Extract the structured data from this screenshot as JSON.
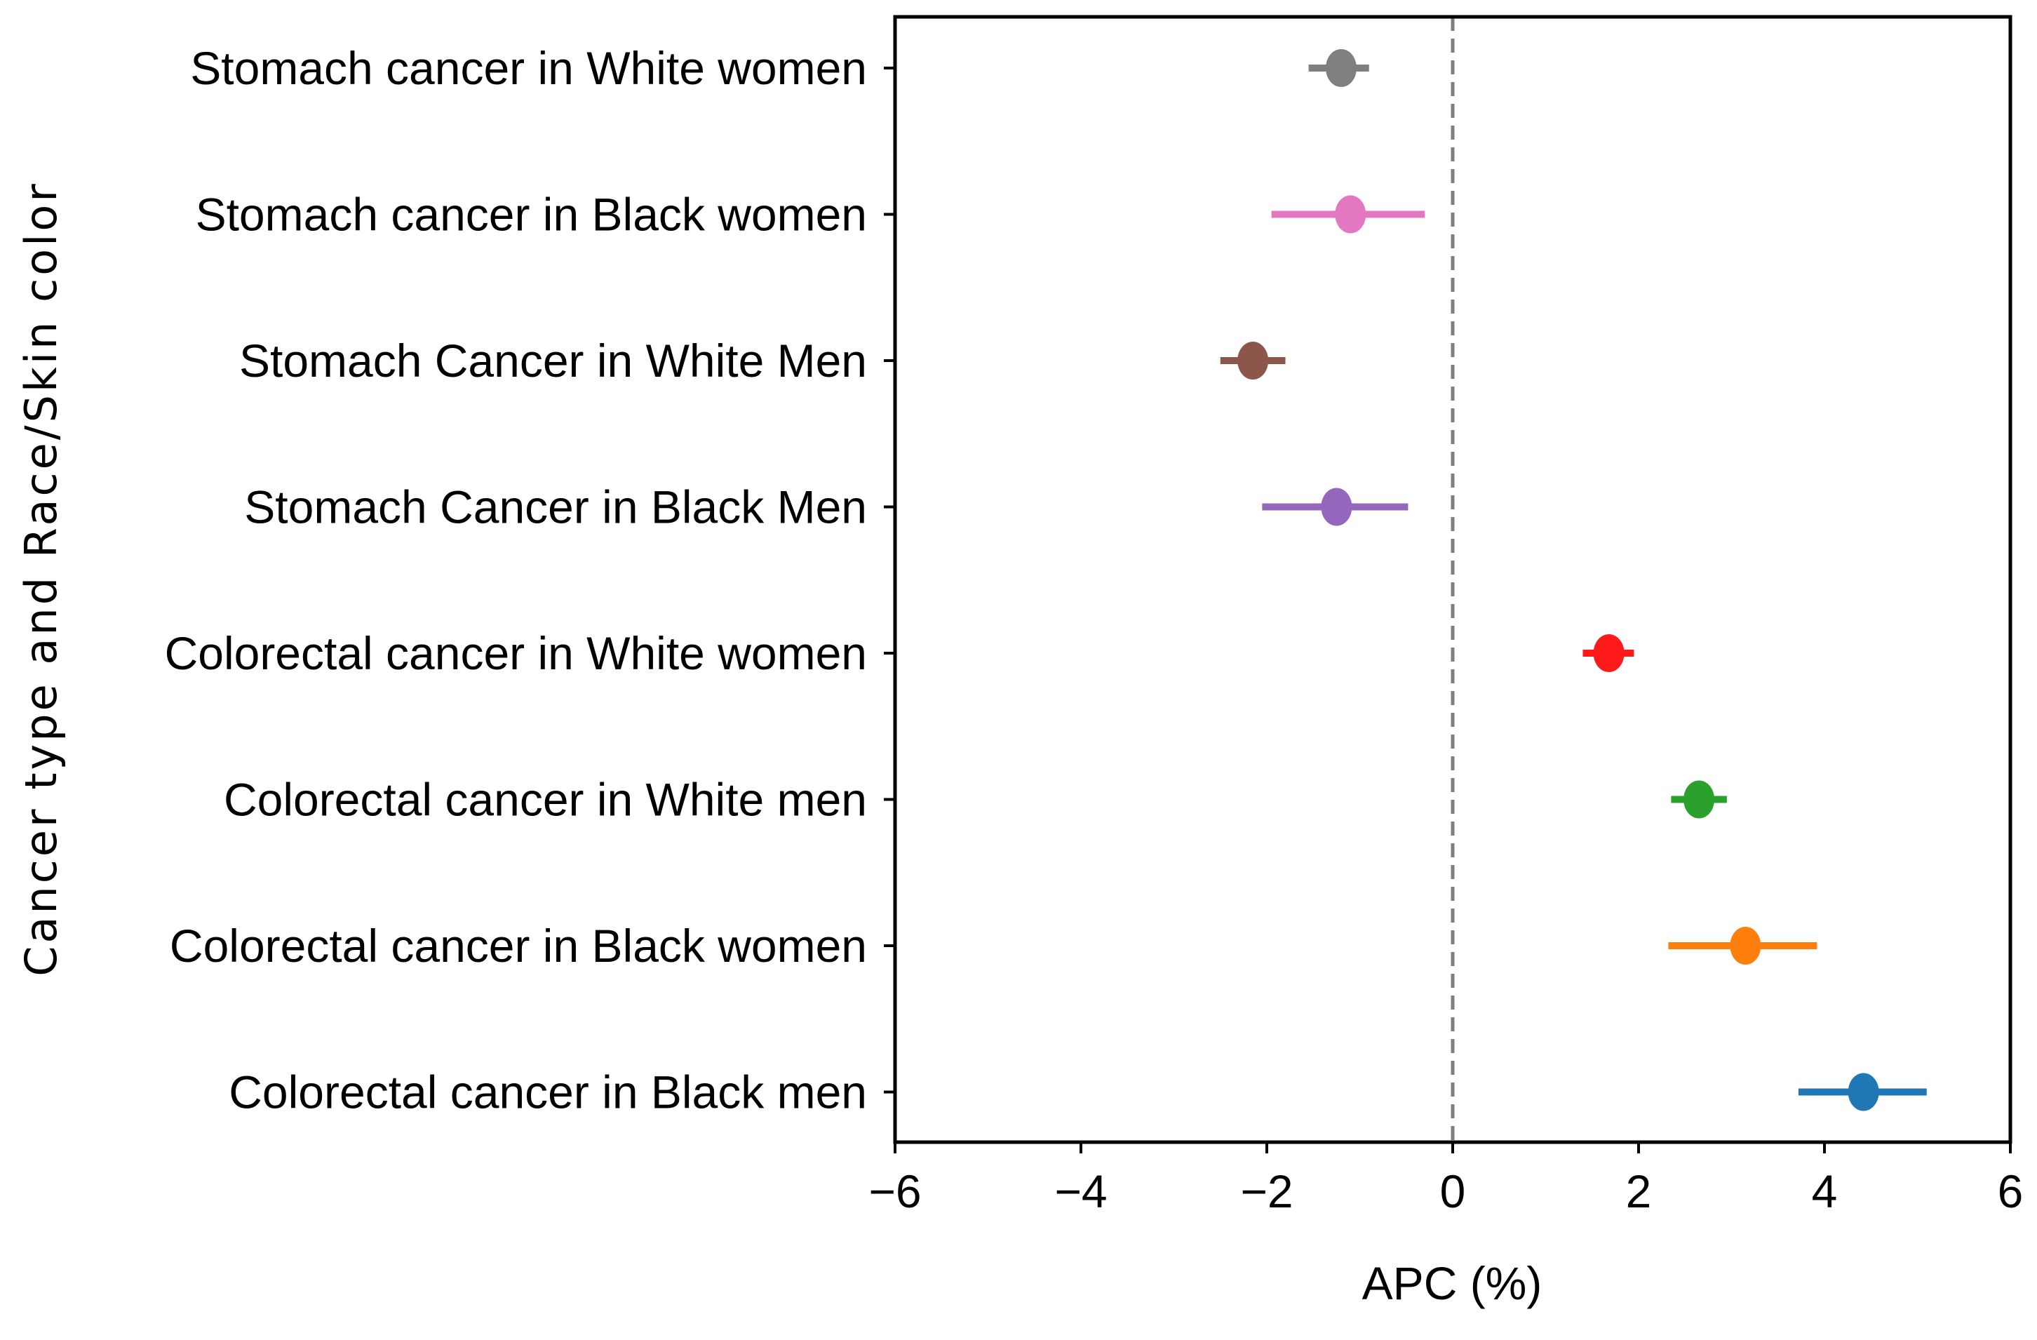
{
  "chart_data": {
    "type": "scatter",
    "subtype": "forest-plot",
    "title": "",
    "xlabel": "APC (%)",
    "ylabel": "Cancer type and Race/Skin color",
    "xlim": [
      -6,
      6
    ],
    "xticks": [
      -6,
      -4,
      -2,
      0,
      2,
      4,
      6
    ],
    "xtick_labels": [
      "−6",
      "−4",
      "−2",
      "0",
      "2",
      "4",
      "6"
    ],
    "reference_line": {
      "x": 0,
      "style": "dashed",
      "color": "#7f7f7f"
    },
    "grid": false,
    "series": [
      {
        "name": "Stomach cancer in White women",
        "apc": -1.2,
        "ci": [
          -1.55,
          -0.9
        ],
        "color": "#7f7f7f"
      },
      {
        "name": "Stomach cancer in Black women",
        "apc": -1.1,
        "ci": [
          -1.95,
          -0.3
        ],
        "color": "#e377c2"
      },
      {
        "name": "Stomach Cancer in White Men",
        "apc": -2.15,
        "ci": [
          -2.5,
          -1.8
        ],
        "color": "#8c564b"
      },
      {
        "name": "Stomach Cancer in Black Men",
        "apc": -1.25,
        "ci": [
          -2.05,
          -0.48
        ],
        "color": "#9467bd"
      },
      {
        "name": "Colorectal cancer in White women",
        "apc": 1.68,
        "ci": [
          1.4,
          1.95
        ],
        "color": "#ff1a1a"
      },
      {
        "name": "Colorectal cancer in White men",
        "apc": 2.65,
        "ci": [
          2.35,
          2.95
        ],
        "color": "#2ca02c"
      },
      {
        "name": "Colorectal cancer in Black women",
        "apc": 3.15,
        "ci": [
          2.32,
          3.92
        ],
        "color": "#ff7f0e"
      },
      {
        "name": "Colorectal cancer in Black men",
        "apc": 4.42,
        "ci": [
          3.72,
          5.1
        ],
        "color": "#1f77b4"
      }
    ]
  }
}
